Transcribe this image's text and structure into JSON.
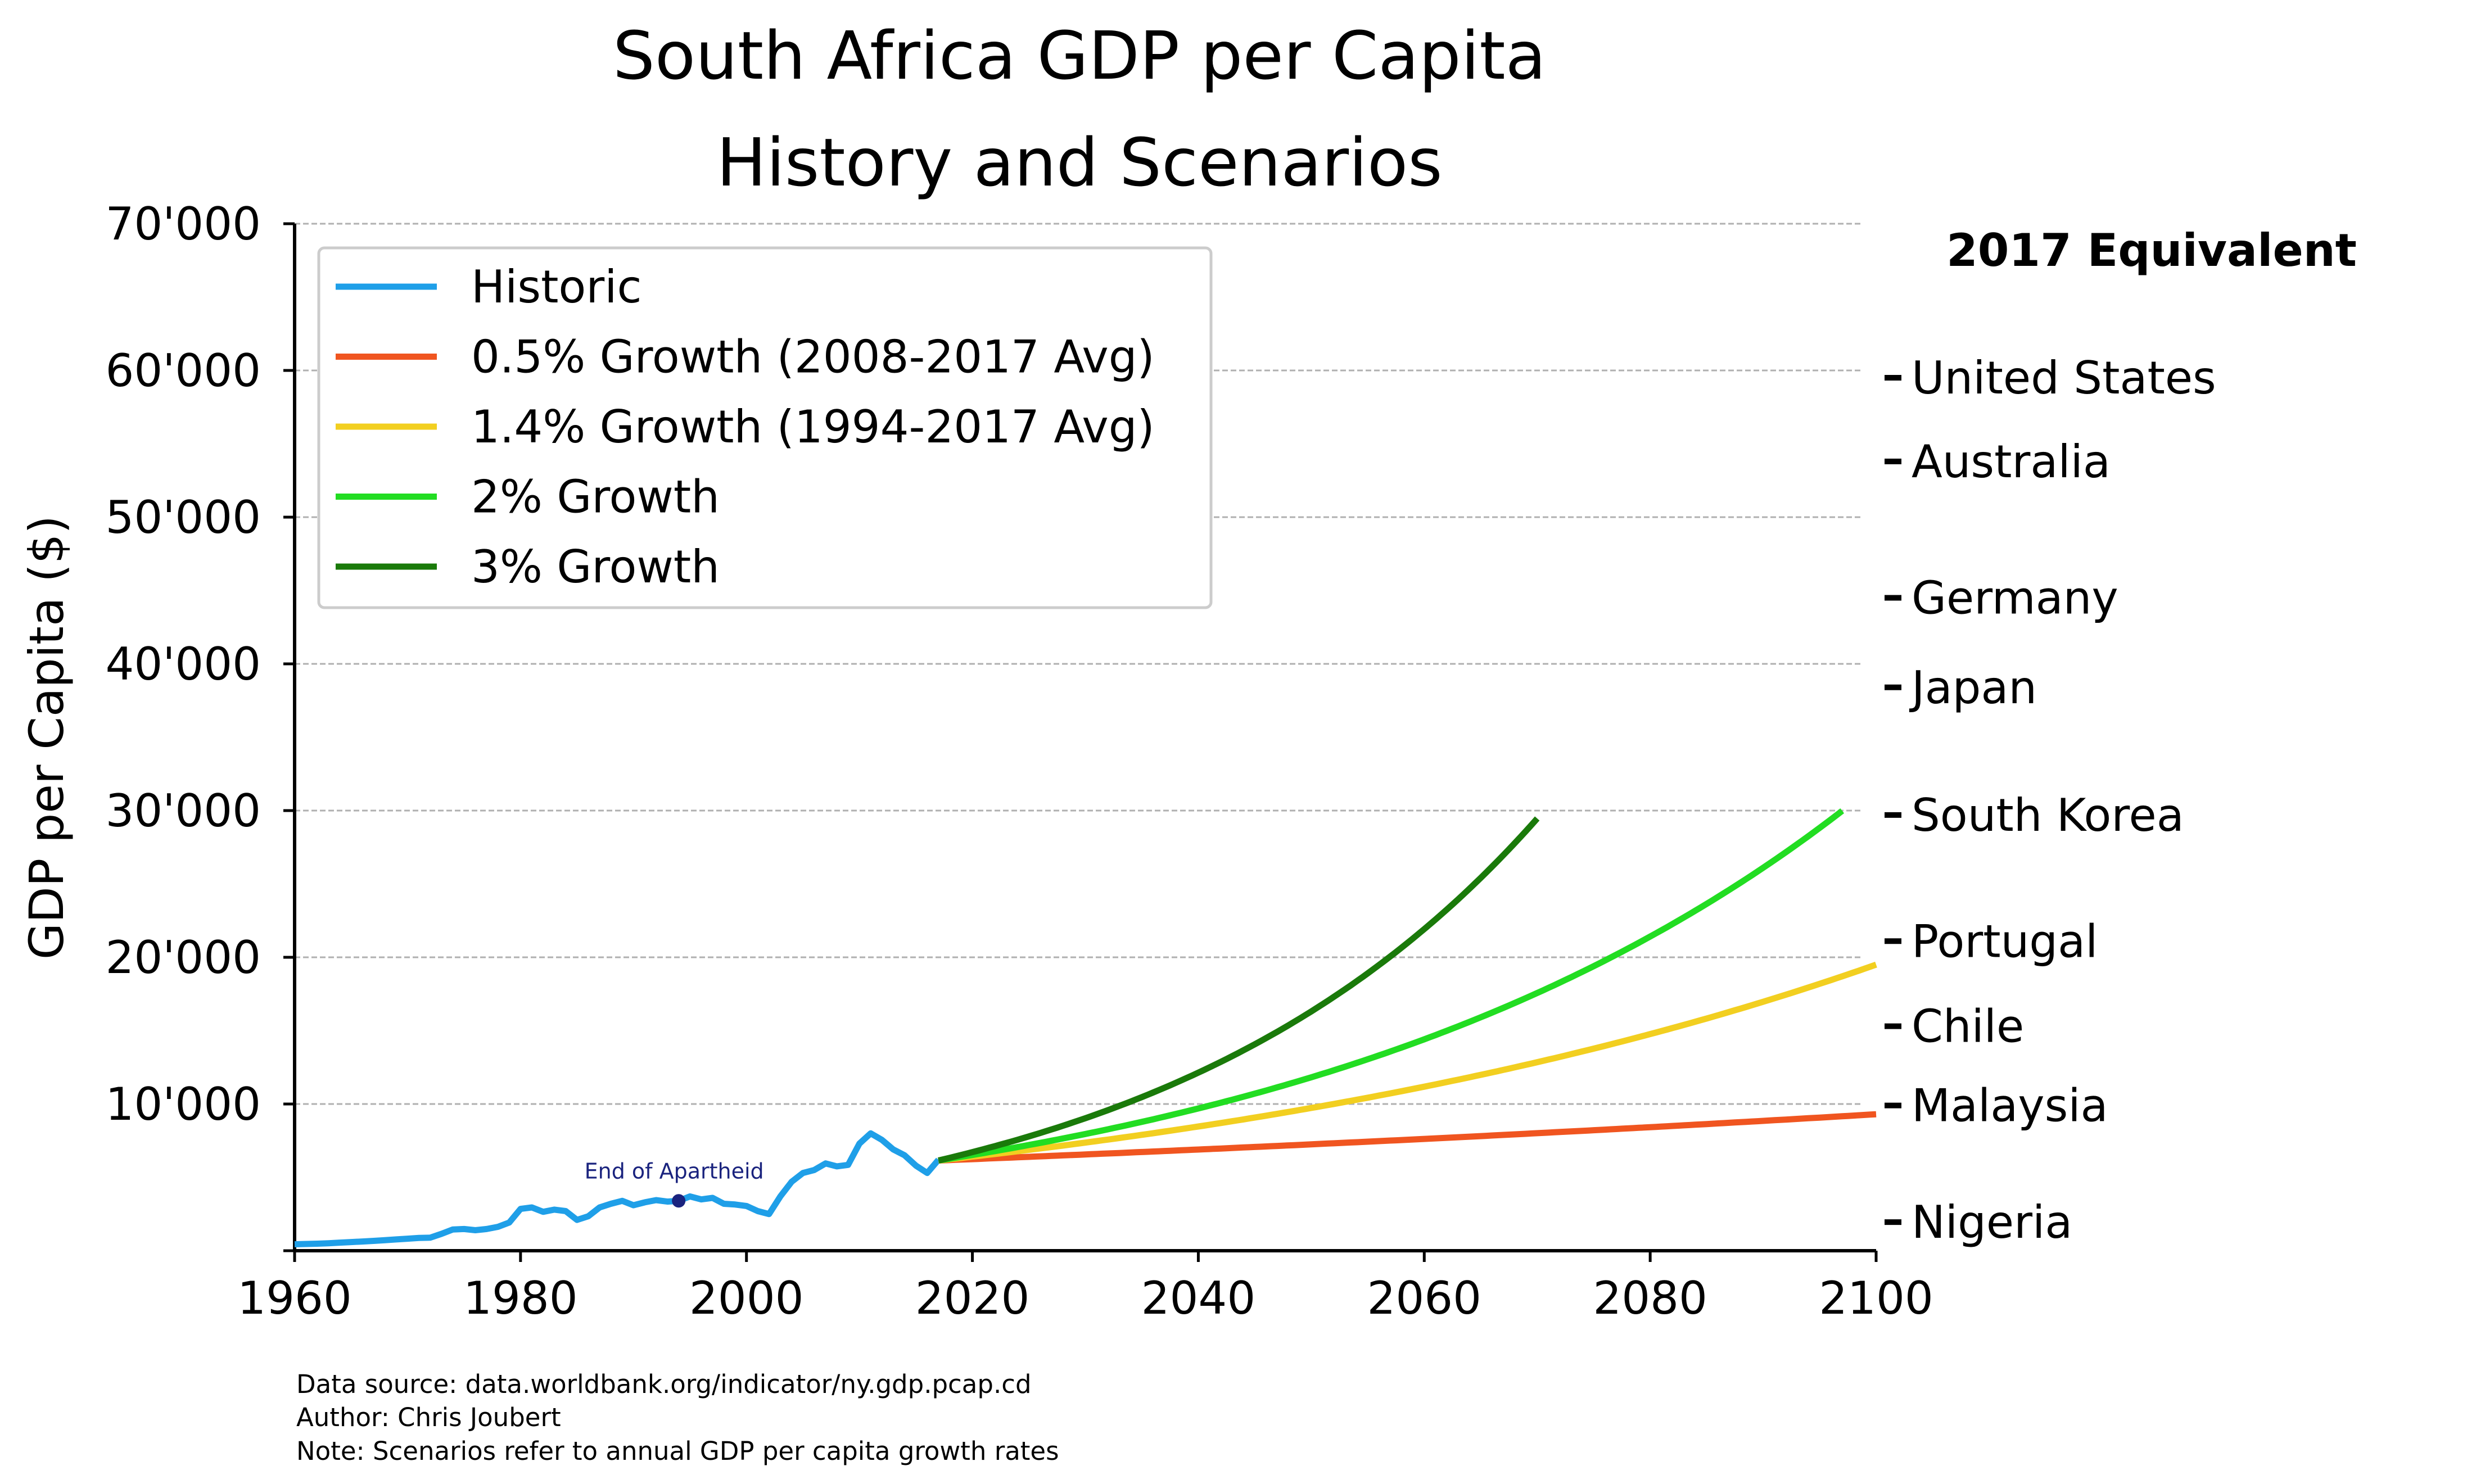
{
  "chart_data": {
    "type": "line",
    "title_line1": "South Africa GDP per Capita",
    "title_line2": "History and Scenarios",
    "ylabel": "GDP per Capita ($)",
    "xlim": [
      1960,
      2100
    ],
    "ylim": [
      0,
      70000
    ],
    "x_ticks": [
      1960,
      1980,
      2000,
      2020,
      2040,
      2060,
      2080,
      2100
    ],
    "y_ticks": [
      {
        "value": 10000,
        "label": "10'000"
      },
      {
        "value": 20000,
        "label": "20'000"
      },
      {
        "value": 30000,
        "label": "30'000"
      },
      {
        "value": 40000,
        "label": "40'000"
      },
      {
        "value": 50000,
        "label": "50'000"
      },
      {
        "value": 60000,
        "label": "60'000"
      },
      {
        "value": 70000,
        "label": "70'000"
      }
    ],
    "grid": "horizontal dashed",
    "legend_position": "top-left",
    "series": [
      {
        "name": "Historic",
        "color": "#1f9fe8",
        "x": [
          1960,
          1961,
          1962,
          1963,
          1964,
          1965,
          1966,
          1967,
          1968,
          1969,
          1970,
          1971,
          1972,
          1973,
          1974,
          1975,
          1976,
          1977,
          1978,
          1979,
          1980,
          1981,
          1982,
          1983,
          1984,
          1985,
          1986,
          1987,
          1988,
          1989,
          1990,
          1991,
          1992,
          1993,
          1994,
          1995,
          1996,
          1997,
          1998,
          1999,
          2000,
          2001,
          2002,
          2003,
          2004,
          2005,
          2006,
          2007,
          2008,
          2009,
          2010,
          2011,
          2012,
          2013,
          2014,
          2015,
          2016,
          2017
        ],
        "y": [
          440,
          460,
          480,
          510,
          550,
          590,
          630,
          670,
          720,
          770,
          820,
          870,
          890,
          1150,
          1450,
          1480,
          1400,
          1480,
          1630,
          1920,
          2850,
          2950,
          2650,
          2800,
          2700,
          2100,
          2350,
          2950,
          3200,
          3400,
          3100,
          3300,
          3450,
          3350,
          3400,
          3700,
          3500,
          3600,
          3200,
          3150,
          3050,
          2700,
          2500,
          3700,
          4700,
          5300,
          5500,
          5950,
          5750,
          5850,
          7300,
          8000,
          7550,
          6900,
          6500,
          5800,
          5300,
          6200
        ]
      },
      {
        "name": "0.5% Growth (2008-2017 Avg)",
        "color": "#f05520",
        "start_year": 2017,
        "end_year": 2100,
        "start_value": 6150,
        "rate": 0.005
      },
      {
        "name": "1.4% Growth (1994-2017 Avg)",
        "color": "#f2cf20",
        "start_year": 2017,
        "end_year": 2100,
        "start_value": 6150,
        "rate": 0.014
      },
      {
        "name": "2% Growth",
        "color": "#22dd22",
        "start_year": 2017,
        "end_year": 2097,
        "start_value": 6150,
        "rate": 0.02
      },
      {
        "name": "3% Growth",
        "color": "#1a7a0a",
        "start_year": 2017,
        "end_year": 2070,
        "start_value": 6150,
        "rate": 0.03
      }
    ],
    "annotation": {
      "text": "End of Apartheid",
      "x": 1994,
      "y": 3400,
      "color": "#1a237e"
    },
    "equivalent_heading": "2017 Equivalent",
    "countries": [
      {
        "name": "United States",
        "value": 59500
      },
      {
        "name": "Australia",
        "value": 53800
      },
      {
        "name": "Germany",
        "value": 44500
      },
      {
        "name": "Japan",
        "value": 38400
      },
      {
        "name": "South Korea",
        "value": 29700
      },
      {
        "name": "Portugal",
        "value": 21100
      },
      {
        "name": "Chile",
        "value": 15300
      },
      {
        "name": "Malaysia",
        "value": 9900
      },
      {
        "name": "Nigeria",
        "value": 1950
      }
    ]
  },
  "footnotes": {
    "source": "Data source: data.worldbank.org/indicator/ny.gdp.pcap.cd",
    "author": "Author: Chris Joubert",
    "note": "Note: Scenarios refer to annual GDP per capita growth rates"
  }
}
